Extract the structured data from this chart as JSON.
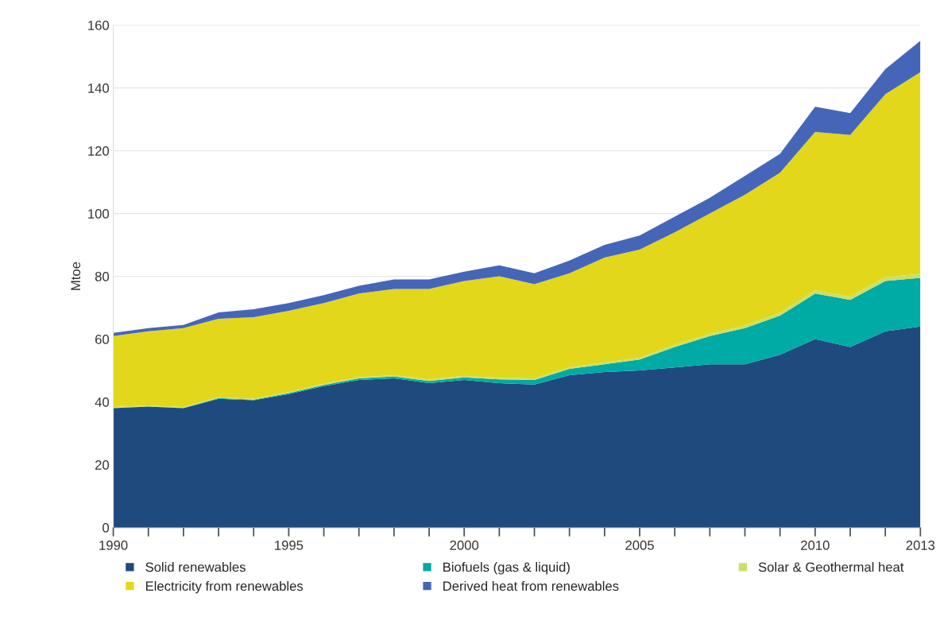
{
  "chart_data": {
    "type": "area",
    "stacked": true,
    "ylabel": "Mtoe",
    "x": [
      1990,
      1991,
      1992,
      1993,
      1994,
      1995,
      1996,
      1997,
      1998,
      1999,
      2000,
      2001,
      2002,
      2003,
      2004,
      2005,
      2006,
      2007,
      2008,
      2009,
      2010,
      2011,
      2012,
      2013
    ],
    "series": [
      {
        "name": "Solid renewables",
        "color": "#1f4a7e",
        "values": [
          38,
          38.5,
          38,
          41,
          40.5,
          42.5,
          45,
          47,
          47.5,
          46,
          47,
          46,
          45.5,
          48.5,
          49.5,
          50,
          51,
          52,
          52,
          55,
          60,
          57.5,
          62.5,
          64
        ]
      },
      {
        "name": "Biofuels (gas & liquid)",
        "color": "#00aaa5",
        "values": [
          0.1,
          0.1,
          0.1,
          0.2,
          0.2,
          0.3,
          0.4,
          0.5,
          0.6,
          0.7,
          0.8,
          1.2,
          1.5,
          2,
          2.5,
          3.5,
          6.5,
          9,
          11.5,
          12.5,
          14.5,
          15,
          16,
          15.5
        ]
      },
      {
        "name": "Solar & Geothermal heat",
        "color": "#c8e06a",
        "values": [
          0.3,
          0.3,
          0.3,
          0.3,
          0.3,
          0.3,
          0.4,
          0.4,
          0.4,
          0.4,
          0.5,
          0.5,
          0.5,
          0.5,
          0.6,
          0.6,
          0.7,
          0.7,
          0.8,
          0.9,
          1,
          1.1,
          1.2,
          1.3
        ]
      },
      {
        "name": "Electricity from renewables",
        "color": "#e3d71c",
        "values": [
          22.6,
          23.6,
          25.1,
          25,
          26,
          25.9,
          25.7,
          26.6,
          27.5,
          28.9,
          30.2,
          32.3,
          30,
          30,
          33.4,
          34.4,
          35.8,
          38.3,
          41.7,
          44.6,
          50.5,
          51.4,
          58.3,
          64.2
        ]
      },
      {
        "name": "Derived heat from renewables",
        "color": "#4566b8",
        "values": [
          1,
          1,
          1,
          2,
          2.5,
          2.5,
          2.5,
          2.5,
          3,
          3,
          3,
          3.5,
          3.5,
          4,
          4,
          4.5,
          5,
          5,
          6,
          6,
          8,
          7,
          8,
          10
        ]
      }
    ],
    "xlim": [
      1990,
      2013
    ],
    "xticks": [
      1990,
      {
        "value": 1991,
        "label": null
      },
      {
        "value": 1992,
        "label": null
      },
      {
        "value": 1993,
        "label": null
      },
      {
        "value": 1994,
        "label": null
      },
      1995,
      {
        "value": 1996,
        "label": null
      },
      {
        "value": 1997,
        "label": null
      },
      {
        "value": 1998,
        "label": null
      },
      {
        "value": 1999,
        "label": null
      },
      2000,
      {
        "value": 2001,
        "label": null
      },
      {
        "value": 2002,
        "label": null
      },
      {
        "value": 2003,
        "label": null
      },
      {
        "value": 2004,
        "label": null
      },
      2005,
      {
        "value": 2006,
        "label": null
      },
      {
        "value": 2007,
        "label": null
      },
      {
        "value": 2008,
        "label": null
      },
      {
        "value": 2009,
        "label": null
      },
      2010,
      {
        "value": 2011,
        "label": null
      },
      {
        "value": 2012,
        "label": null
      },
      2013
    ],
    "ylim": [
      0,
      160
    ],
    "yticks": [
      0,
      20,
      40,
      60,
      80,
      100,
      120,
      140,
      160
    ],
    "grid": "y",
    "legend": "bottom"
  }
}
